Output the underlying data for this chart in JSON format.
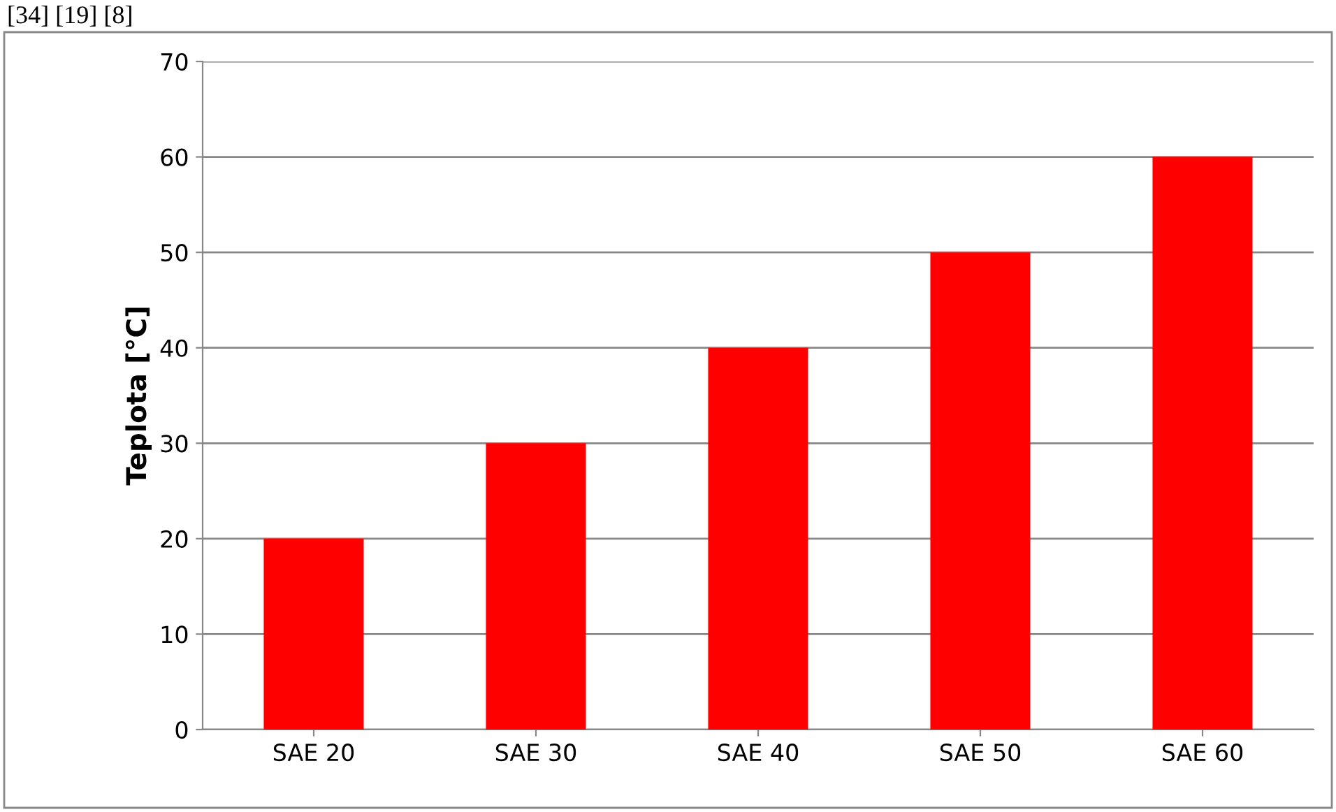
{
  "chart_data": {
    "type": "bar",
    "ylabel": "Teplota [°C]",
    "categories": [
      "SAE 20",
      "SAE 30",
      "SAE 40",
      "SAE 50",
      "SAE 60"
    ],
    "values": [
      20,
      30,
      40,
      50,
      60
    ],
    "color": "#ff0000",
    "ylim": [
      0,
      70
    ],
    "yticks": [
      0,
      10,
      20,
      30,
      40,
      50,
      60,
      70
    ],
    "grid": "y",
    "annotations": [
      "[34] [19] [8]"
    ]
  }
}
